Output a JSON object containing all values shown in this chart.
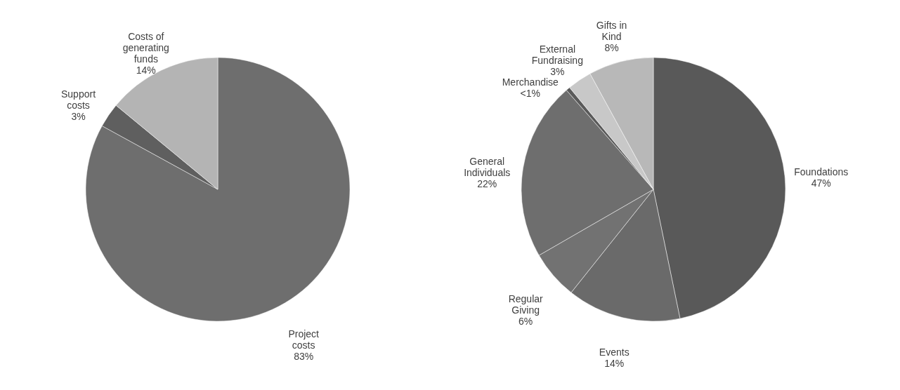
{
  "chart_data": [
    {
      "type": "pie",
      "categories": [
        "Project costs",
        "Support costs",
        "Costs of generating funds"
      ],
      "values": [
        83,
        3,
        14
      ],
      "colors": [
        "#6e6e6e",
        "#5f5f5f",
        "#b4b4b4"
      ],
      "value_labels": [
        "83%",
        "3%",
        "14%"
      ]
    },
    {
      "type": "pie",
      "categories": [
        "Foundations",
        "Events",
        "Regular Giving",
        "General Individuals",
        "Merchandise",
        "External Fundraising",
        "Gifts in Kind"
      ],
      "values": [
        47,
        14,
        6,
        22,
        0.5,
        3,
        8
      ],
      "colors": [
        "#595959",
        "#6a6a6a",
        "#727272",
        "#6e6e6e",
        "#5a5a5a",
        "#c8c8c8",
        "#b8b8b8"
      ],
      "value_labels": [
        "47%",
        "14%",
        "6%",
        "22%",
        "<1%",
        "3%",
        "8%"
      ]
    }
  ]
}
